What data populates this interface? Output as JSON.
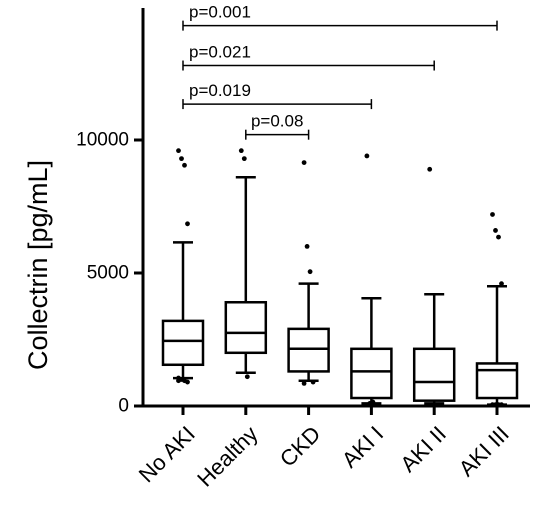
{
  "chart_data": {
    "type": "box",
    "title": "",
    "xlabel": "",
    "ylabel": "Collectrin [pg/mL]",
    "ylim": [
      0,
      15000
    ],
    "yticks": [
      0,
      5000,
      10000
    ],
    "ytick_labels": [
      "0",
      "5000",
      "10000"
    ],
    "categories": [
      "No AKI",
      "Healthy",
      "CKD",
      "AKI I",
      "AKI II",
      "AKI III"
    ],
    "boxes": [
      {
        "category": "No AKI",
        "q1": 1550,
        "median": 2450,
        "q3": 3200,
        "whisker_low": 1050,
        "whisker_high": 6150,
        "outliers": [
          9600,
          9300,
          9050,
          6850,
          1050,
          1000,
          950,
          900,
          950,
          1000
        ]
      },
      {
        "category": "Healthy",
        "q1": 2000,
        "median": 2750,
        "q3": 3900,
        "whisker_low": 1250,
        "whisker_high": 8600,
        "outliers": [
          9600,
          9300,
          1100
        ]
      },
      {
        "category": "CKD",
        "q1": 1300,
        "median": 2150,
        "q3": 2900,
        "whisker_low": 950,
        "whisker_high": 4600,
        "outliers": [
          9150,
          6000,
          5050,
          900,
          850
        ]
      },
      {
        "category": "AKI I",
        "q1": 300,
        "median": 1300,
        "q3": 2150,
        "whisker_low": 100,
        "whisker_high": 4050,
        "outliers": [
          9400,
          100,
          150
        ]
      },
      {
        "category": "AKI II",
        "q1": 200,
        "median": 900,
        "q3": 2150,
        "whisker_low": 100,
        "whisker_high": 4200,
        "outliers": [
          8900
        ]
      },
      {
        "category": "AKI III",
        "q1": 300,
        "median": 1350,
        "q3": 1600,
        "whisker_low": 50,
        "whisker_high": 4500,
        "outliers": [
          7200,
          6600,
          6350,
          4600,
          50,
          50,
          50,
          50
        ]
      }
    ],
    "comparisons": [
      {
        "from": "No AKI",
        "to": "AKI III",
        "label": "p=0.001",
        "y": 14300
      },
      {
        "from": "No AKI",
        "to": "AKI II",
        "label": "p=0.021",
        "y": 12800
      },
      {
        "from": "No AKI",
        "to": "AKI I",
        "label": "p=0.019",
        "y": 11350
      },
      {
        "from": "Healthy",
        "to": "CKD",
        "label": "p=0.08",
        "y": 10200
      }
    ],
    "grid": false,
    "legend": "none"
  }
}
